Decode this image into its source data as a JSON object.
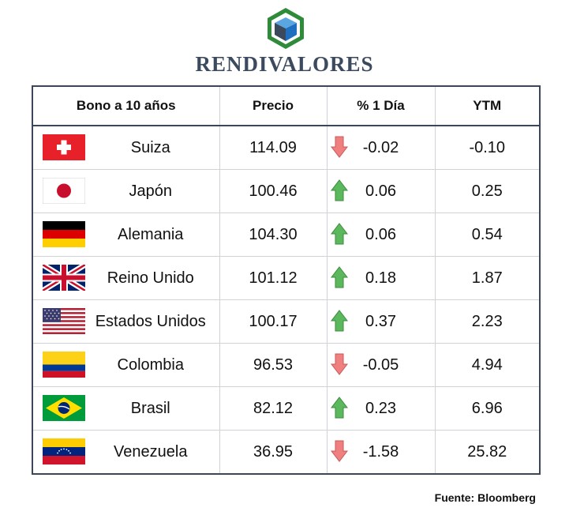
{
  "brand": {
    "name": "RENDIVALORES",
    "logo_icon": "cube-hexagon-logo"
  },
  "table": {
    "headers": [
      "Bono a 10 años",
      "Precio",
      "% 1 Día",
      "YTM"
    ],
    "rows": [
      {
        "country": "Suiza",
        "flag_icon": "switzerland-flag-icon",
        "price": "114.09",
        "change": "-0.02",
        "direction": "down",
        "ytm": "-0.10"
      },
      {
        "country": "Japón",
        "flag_icon": "japan-flag-icon",
        "price": "100.46",
        "change": "0.06",
        "direction": "up",
        "ytm": "0.25"
      },
      {
        "country": "Alemania",
        "flag_icon": "germany-flag-icon",
        "price": "104.30",
        "change": "0.06",
        "direction": "up",
        "ytm": "0.54"
      },
      {
        "country": "Reino Unido",
        "flag_icon": "united-kingdom-flag-icon",
        "price": "101.12",
        "change": "0.18",
        "direction": "up",
        "ytm": "1.87"
      },
      {
        "country": "Estados Unidos",
        "flag_icon": "united-states-flag-icon",
        "price": "100.17",
        "change": "0.37",
        "direction": "up",
        "ytm": "2.23"
      },
      {
        "country": "Colombia",
        "flag_icon": "colombia-flag-icon",
        "price": "96.53",
        "change": "-0.05",
        "direction": "down",
        "ytm": "4.94"
      },
      {
        "country": "Brasil",
        "flag_icon": "brazil-flag-icon",
        "price": "82.12",
        "change": "0.23",
        "direction": "up",
        "ytm": "6.96"
      },
      {
        "country": "Venezuela",
        "flag_icon": "venezuela-flag-icon",
        "price": "36.95",
        "change": "-1.58",
        "direction": "down",
        "ytm": "25.82"
      }
    ]
  },
  "source": "Fuente: Bloomberg",
  "colors": {
    "up_arrow": "#5cb85c",
    "down_arrow": "#f08080",
    "brand_text": "#3b4a5e",
    "table_border": "#3b4758"
  }
}
